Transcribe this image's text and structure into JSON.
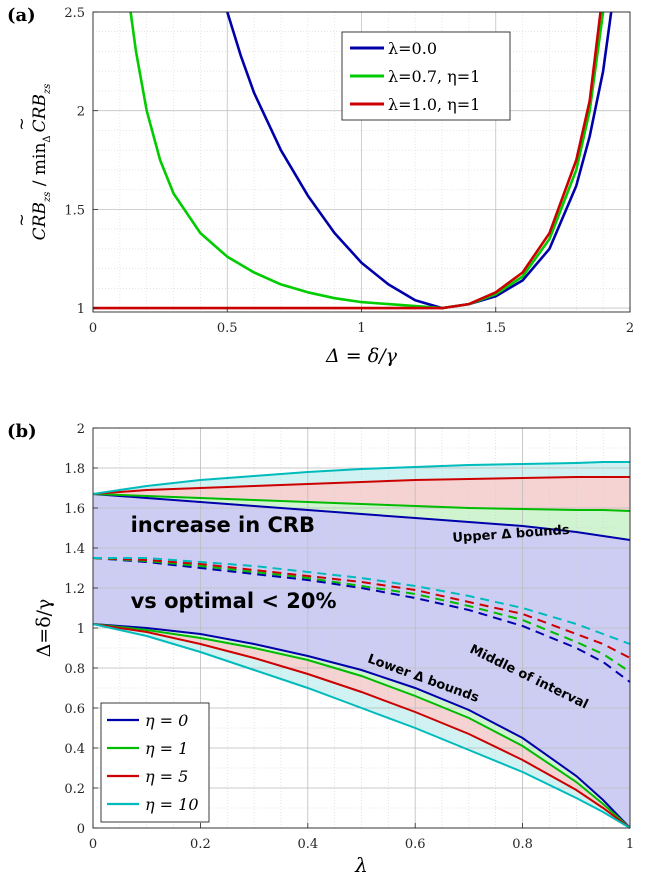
{
  "chart_data": [
    {
      "panel_label": "(a)",
      "type": "line",
      "xlabel": "Δ = δ/γ",
      "ylabel": "CRB̃ z_s / min_Δ CRB̃ z_s",
      "ylabel_parts": {
        "num": "CRB",
        "sub": "zs",
        "sep": " / min",
        "op_sub": "Δ",
        "den": "CRB",
        "den_sub": "zs"
      },
      "xlim": [
        0,
        2
      ],
      "ylim": [
        0.98,
        2.5
      ],
      "xticks": [
        0,
        0.5,
        1,
        1.5,
        2
      ],
      "xtick_labels": [
        "0",
        "0.5",
        "1",
        "1.5",
        "2"
      ],
      "yticks": [
        1,
        1.5,
        2,
        2.5
      ],
      "ytick_labels": [
        "1",
        "1.5",
        "2",
        "2.5"
      ],
      "grid": true,
      "legend_position": "top-right",
      "series": [
        {
          "name": "λ=0.0",
          "color": "#0000aa",
          "x": [
            0.5,
            0.55,
            0.6,
            0.7,
            0.8,
            0.9,
            1.0,
            1.1,
            1.2,
            1.3,
            1.4,
            1.5,
            1.6,
            1.7,
            1.8,
            1.85,
            1.9,
            1.93
          ],
          "y": [
            2.5,
            2.28,
            2.09,
            1.8,
            1.57,
            1.38,
            1.23,
            1.12,
            1.04,
            1.0,
            1.02,
            1.06,
            1.14,
            1.3,
            1.62,
            1.87,
            2.2,
            2.5
          ]
        },
        {
          "name": "λ=0.7, η=1",
          "color": "#00cc00",
          "x": [
            0.14,
            0.16,
            0.2,
            0.25,
            0.3,
            0.4,
            0.5,
            0.6,
            0.7,
            0.8,
            0.9,
            1.0,
            1.1,
            1.2,
            1.3,
            1.4,
            1.5,
            1.6,
            1.7,
            1.8,
            1.85,
            1.9
          ],
          "y": [
            2.5,
            2.3,
            2.0,
            1.75,
            1.58,
            1.38,
            1.26,
            1.18,
            1.12,
            1.08,
            1.05,
            1.03,
            1.02,
            1.01,
            1.0,
            1.02,
            1.07,
            1.16,
            1.35,
            1.7,
            2.0,
            2.5
          ]
        },
        {
          "name": "λ=1.0, η=1",
          "color": "#cc0000",
          "x": [
            0.0,
            0.2,
            0.4,
            0.6,
            0.8,
            1.0,
            1.1,
            1.2,
            1.3,
            1.4,
            1.5,
            1.6,
            1.7,
            1.8,
            1.85,
            1.89
          ],
          "y": [
            1.0,
            1.0,
            1.0,
            1.0,
            1.0,
            1.0,
            1.0,
            1.0,
            1.0,
            1.02,
            1.08,
            1.18,
            1.38,
            1.75,
            2.05,
            2.5
          ]
        }
      ]
    },
    {
      "panel_label": "(b)",
      "type": "line",
      "xlabel": "λ",
      "ylabel": "Δ=δ/γ",
      "xlim": [
        0,
        1
      ],
      "ylim": [
        0,
        2
      ],
      "xticks": [
        0,
        0.2,
        0.4,
        0.6,
        0.8,
        1
      ],
      "xtick_labels": [
        "0",
        "0.2",
        "0.4",
        "0.6",
        "0.8",
        "1"
      ],
      "yticks": [
        0,
        0.2,
        0.4,
        0.6,
        0.8,
        1,
        1.2,
        1.4,
        1.6,
        1.8,
        2
      ],
      "ytick_labels": [
        "0",
        "0.2",
        "0.4",
        "0.6",
        "0.8",
        "1",
        "1.2",
        "1.4",
        "1.6",
        "1.8",
        "2"
      ],
      "grid": true,
      "legend_position": "bottom-left",
      "x": [
        0,
        0.1,
        0.2,
        0.3,
        0.4,
        0.5,
        0.6,
        0.7,
        0.8,
        0.9,
        0.95,
        1.0
      ],
      "series": [
        {
          "name": "η = 0",
          "color": "#0000aa",
          "upper": [
            1.67,
            1.65,
            1.63,
            1.61,
            1.59,
            1.57,
            1.55,
            1.53,
            1.51,
            1.48,
            1.46,
            1.44
          ],
          "middle": [
            1.35,
            1.33,
            1.3,
            1.27,
            1.24,
            1.2,
            1.15,
            1.09,
            1.01,
            0.9,
            0.83,
            0.73
          ],
          "lower": [
            1.02,
            1.0,
            0.97,
            0.92,
            0.86,
            0.79,
            0.7,
            0.59,
            0.45,
            0.26,
            0.14,
            0.0
          ]
        },
        {
          "name": "η = 1",
          "color": "#00bb00",
          "upper": [
            1.67,
            1.66,
            1.65,
            1.64,
            1.63,
            1.62,
            1.61,
            1.6,
            1.595,
            1.59,
            1.59,
            1.585
          ],
          "middle": [
            1.35,
            1.335,
            1.31,
            1.28,
            1.25,
            1.21,
            1.17,
            1.11,
            1.04,
            0.93,
            0.87,
            0.78
          ],
          "lower": [
            1.02,
            0.99,
            0.95,
            0.9,
            0.84,
            0.76,
            0.66,
            0.55,
            0.41,
            0.23,
            0.12,
            0.0
          ]
        },
        {
          "name": "η = 5",
          "color": "#cc0000",
          "upper": [
            1.67,
            1.69,
            1.7,
            1.71,
            1.72,
            1.73,
            1.74,
            1.745,
            1.75,
            1.755,
            1.755,
            1.755
          ],
          "middle": [
            1.35,
            1.34,
            1.32,
            1.29,
            1.26,
            1.23,
            1.19,
            1.13,
            1.07,
            0.97,
            0.92,
            0.85
          ],
          "lower": [
            1.02,
            0.98,
            0.92,
            0.85,
            0.77,
            0.68,
            0.58,
            0.47,
            0.34,
            0.19,
            0.1,
            0.0
          ]
        },
        {
          "name": "η = 10",
          "color": "#00bbbb",
          "upper": [
            1.67,
            1.71,
            1.74,
            1.76,
            1.78,
            1.795,
            1.805,
            1.815,
            1.82,
            1.825,
            1.83,
            1.83
          ],
          "middle": [
            1.35,
            1.35,
            1.33,
            1.31,
            1.28,
            1.25,
            1.21,
            1.16,
            1.1,
            1.02,
            0.97,
            0.92
          ],
          "lower": [
            1.02,
            0.96,
            0.88,
            0.79,
            0.7,
            0.6,
            0.5,
            0.39,
            0.28,
            0.15,
            0.08,
            0.0
          ]
        }
      ],
      "fill_colors": [
        "#bcbcf0",
        "#c4f0c4",
        "#f3c8c8",
        "#c0eeee"
      ],
      "annotations": [
        {
          "text": "increase in CRB",
          "x": 0.07,
          "y": 1.48,
          "size": "large"
        },
        {
          "text": "vs optimal < 20%",
          "x": 0.07,
          "y": 1.1,
          "size": "large"
        },
        {
          "text": "Upper Δ bounds",
          "x": 0.67,
          "y": 1.43,
          "size": "small",
          "rotate": -4
        },
        {
          "text": "Middle of interval",
          "x": 0.7,
          "y": 0.88,
          "size": "small",
          "rotate": 26
        },
        {
          "text": "Lower Δ bounds",
          "x": 0.51,
          "y": 0.83,
          "size": "small",
          "rotate": 20
        }
      ]
    }
  ]
}
